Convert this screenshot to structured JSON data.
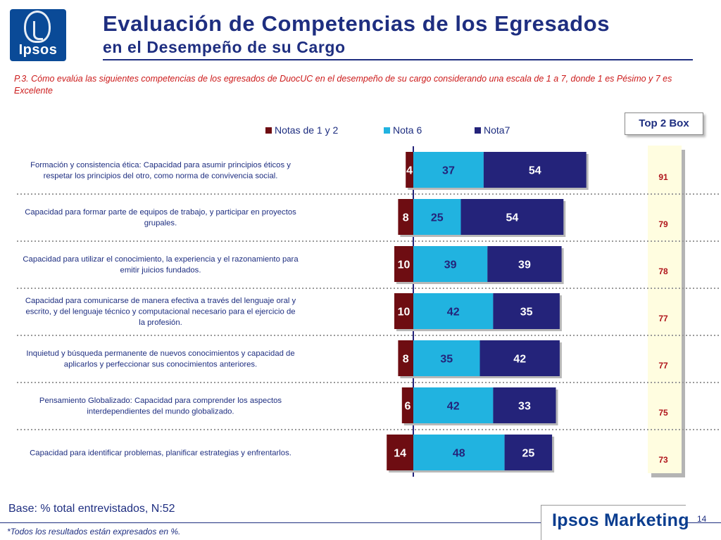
{
  "header": {
    "logo_text": "Ipsos",
    "title": "Evaluación de Competencias de los Egresados",
    "subtitle": "en el Desempeño de su Cargo"
  },
  "question": "P.3. Cómo evalúa las siguientes competencias de los egresados de DuocUC en el desempeño de su cargo  considerando una escala de 1 a 7,  donde 1 es Pésimo y 7 es Excelente",
  "top2_label": "Top 2 Box",
  "footer": {
    "base": "Base: % total entrevistados, N:52",
    "footnote": "*Todos los resultados están expresados en %.",
    "brand": "Ipsos Marketing",
    "page": "14"
  },
  "colors": {
    "title": "#1e2e80",
    "question": "#cc1b1b",
    "notas_1_5": "#6e0d12",
    "nota6": "#21b3e0",
    "nota7": "#24237a",
    "top2_value": "#b0141b"
  },
  "chart_data": {
    "type": "bar",
    "orientation": "horizontal",
    "stacked": true,
    "categories": [
      "Formación y consistencia ética: Capacidad para asumir principios éticos y respetar los principios del otro, como norma de convivencia social.",
      "Capacidad para formar parte de equipos de trabajo, y participar en proyectos grupales.",
      "Capacidad para utilizar el conocimiento, la experiencia y el razonamiento para emitir juicios fundados.",
      "Capacidad para comunicarse de manera efectiva a través del lenguaje oral y escrito, y del lenguaje técnico y computacional necesario para el ejercicio de la profesión.",
      "Inquietud y búsqueda permanente de nuevos conocimientos y capacidad de aplicarlos y perfeccionar sus conocimientos anteriores.",
      "Pensamiento Globalizado: Capacidad para comprender los aspectos interdependientes del mundo globalizado.",
      "Capacidad para identificar problemas, planificar estrategias y enfrentarlos."
    ],
    "series": [
      {
        "name": "Notas de 1 y 2",
        "values": [
          4,
          8,
          10,
          10,
          8,
          6,
          14
        ]
      },
      {
        "name": "Nota 6",
        "values": [
          37,
          25,
          39,
          42,
          35,
          42,
          48
        ]
      },
      {
        "name": "Nota7",
        "values": [
          54,
          54,
          39,
          35,
          42,
          33,
          25
        ]
      }
    ],
    "top2_box": [
      91,
      79,
      78,
      77,
      77,
      75,
      73
    ],
    "legend_position": "top",
    "xlim": [
      -15,
      100
    ]
  }
}
